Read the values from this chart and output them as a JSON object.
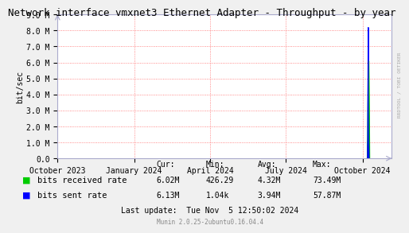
{
  "title": "Network interface vmxnet3 Ethernet Adapter - Throughput - by year",
  "ylabel": "bit/sec",
  "background_color": "#f0f0f0",
  "plot_bg_color": "#ffffff",
  "grid_color": "#ff4444",
  "ylim": [
    0,
    9000000
  ],
  "yticks": [
    0,
    1000000,
    2000000,
    3000000,
    4000000,
    5000000,
    6000000,
    7000000,
    8000000,
    9000000
  ],
  "ytick_labels": [
    "0.0",
    "1.0 M",
    "2.0 M",
    "3.0 M",
    "4.0 M",
    "5.0 M",
    "6.0 M",
    "7.0 M",
    "8.0 M",
    "9.0 M"
  ],
  "xstart": 1696118400,
  "xend": 1730764800,
  "xtick_positions": [
    1696118400,
    1704067200,
    1711929600,
    1719792000,
    1727740800
  ],
  "xtick_labels": [
    "October 2023",
    "January 2024",
    "April 2024",
    "July 2024",
    "October 2024"
  ],
  "green_series": [
    [
      1728172800,
      0
    ],
    [
      1728216000,
      0
    ],
    [
      1728259200,
      1400000
    ],
    [
      1728302400,
      6000000
    ],
    [
      1728345600,
      6100000
    ],
    [
      1728388800,
      3800000
    ],
    [
      1728432000,
      0
    ],
    [
      1728475200,
      0
    ]
  ],
  "blue_series": [
    [
      1728172800,
      0
    ],
    [
      1728216000,
      0
    ],
    [
      1728259200,
      1200000
    ],
    [
      1728302400,
      8200000
    ],
    [
      1728345600,
      1000000
    ],
    [
      1728388800,
      0
    ],
    [
      1728432000,
      0
    ],
    [
      1728475200,
      0
    ]
  ],
  "green_color": "#00cc00",
  "blue_color": "#0000ff",
  "legend": [
    {
      "label": "bits received rate",
      "color": "#00cc00"
    },
    {
      "label": "bits sent rate",
      "color": "#0000ff"
    }
  ],
  "stats_header": [
    "Cur:",
    "Min:",
    "Avg:",
    "Max:"
  ],
  "stats_green": [
    "6.02M",
    "426.29",
    "4.32M",
    "73.49M"
  ],
  "stats_blue": [
    "6.13M",
    "1.04k",
    "3.94M",
    "57.87M"
  ],
  "last_update": "Last update:  Tue Nov  5 12:50:02 2024",
  "munin_version": "Munin 2.0.25-2ubuntu0.16.04.4",
  "rrdtool_label": "RRDTOOL / TOBI OETIKER",
  "title_fontsize": 9,
  "axis_fontsize": 7,
  "legend_fontsize": 7.5,
  "stats_fontsize": 7
}
